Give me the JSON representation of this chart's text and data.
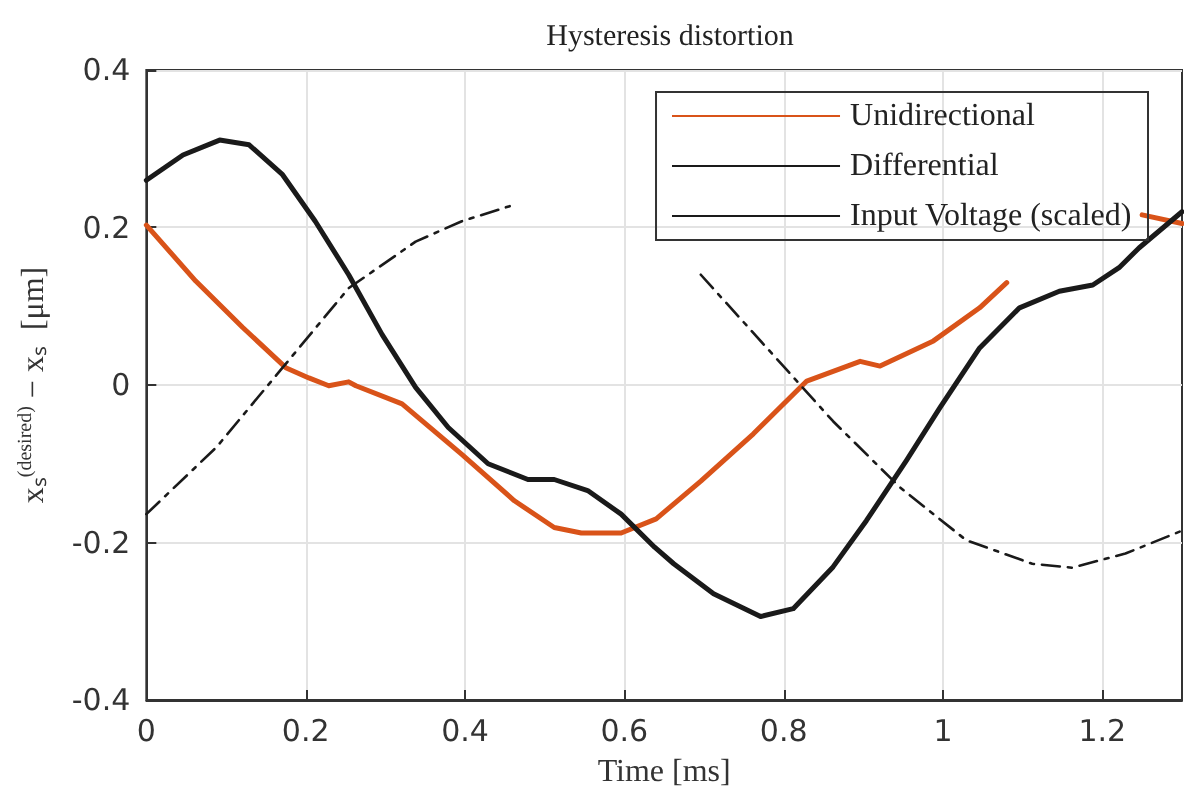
{
  "chart_data": {
    "type": "line",
    "title": "Hysteresis distortion",
    "xlabel": "Time [ms]",
    "ylabel": "xₛ$^{(desired)}$ − xₛ  [μm]",
    "xlim": [
      0,
      1.3
    ],
    "xticks": [
      0,
      0.2,
      0.4,
      0.6,
      0.8,
      1,
      1.2
    ],
    "ylim": [
      -0.4,
      0.4
    ],
    "yticks": [
      -0.4,
      -0.2,
      0,
      0.2,
      0.4
    ],
    "grid": true,
    "legend": "top right",
    "marker": "none",
    "series": [
      {
        "name": "Unidirectional",
        "color": "#d95319",
        "line_style": "solid",
        "x": [
          0,
          0.062,
          0.121,
          0.175,
          0.204,
          0.229,
          0.254,
          0.263,
          0.321,
          0.396,
          0.462,
          0.512,
          0.546,
          0.596,
          0.64,
          0.696,
          0.762,
          0.829,
          0.896,
          0.921,
          0.988,
          1.046,
          1.08,
          1.1,
          1.25,
          1.3
        ],
        "values": [
          0.203,
          0.132,
          0.073,
          0.022,
          0.009,
          -0.001,
          0.004,
          -0.001,
          -0.024,
          -0.088,
          -0.147,
          -0.181,
          -0.188,
          -0.188,
          -0.17,
          -0.122,
          -0.062,
          0.005,
          0.03,
          0.024,
          0.056,
          0.098,
          0.13,
          null,
          0.216,
          0.205
        ]
      },
      {
        "name": "Differential",
        "color": "#1a1a1a",
        "line_style": "solid",
        "x": [
          0,
          0.046,
          0.092,
          0.129,
          0.171,
          0.212,
          0.254,
          0.296,
          0.338,
          0.379,
          0.429,
          0.479,
          0.512,
          0.554,
          0.596,
          0.638,
          0.662,
          0.712,
          0.771,
          0.812,
          0.862,
          0.904,
          0.954,
          0.996,
          1.046,
          1.096,
          1.146,
          1.188,
          1.221,
          1.246,
          1.3
        ],
        "values": [
          0.26,
          0.292,
          0.311,
          0.305,
          0.267,
          0.208,
          0.14,
          0.064,
          -0.003,
          -0.054,
          -0.1,
          -0.12,
          -0.12,
          -0.134,
          -0.164,
          -0.206,
          -0.227,
          -0.265,
          -0.294,
          -0.284,
          -0.231,
          -0.172,
          -0.096,
          -0.029,
          0.047,
          0.098,
          0.119,
          0.127,
          0.149,
          0.174,
          0.22
        ]
      },
      {
        "name": "Input Voltage (scaled)",
        "color": "#1a1a1a",
        "line_style": "dashdot",
        "x": [
          0,
          0.088,
          0.171,
          0.254,
          0.338,
          0.396,
          0.462,
          0.55,
          0.696,
          0.779,
          0.862,
          0.946,
          1.029,
          1.112,
          1.162,
          1.229,
          1.3
        ],
        "values": [
          -0.164,
          -0.079,
          0.022,
          0.123,
          0.182,
          0.208,
          0.229,
          null,
          0.14,
          0.047,
          -0.046,
          -0.13,
          -0.197,
          -0.227,
          -0.232,
          -0.214,
          -0.185
        ]
      }
    ]
  }
}
